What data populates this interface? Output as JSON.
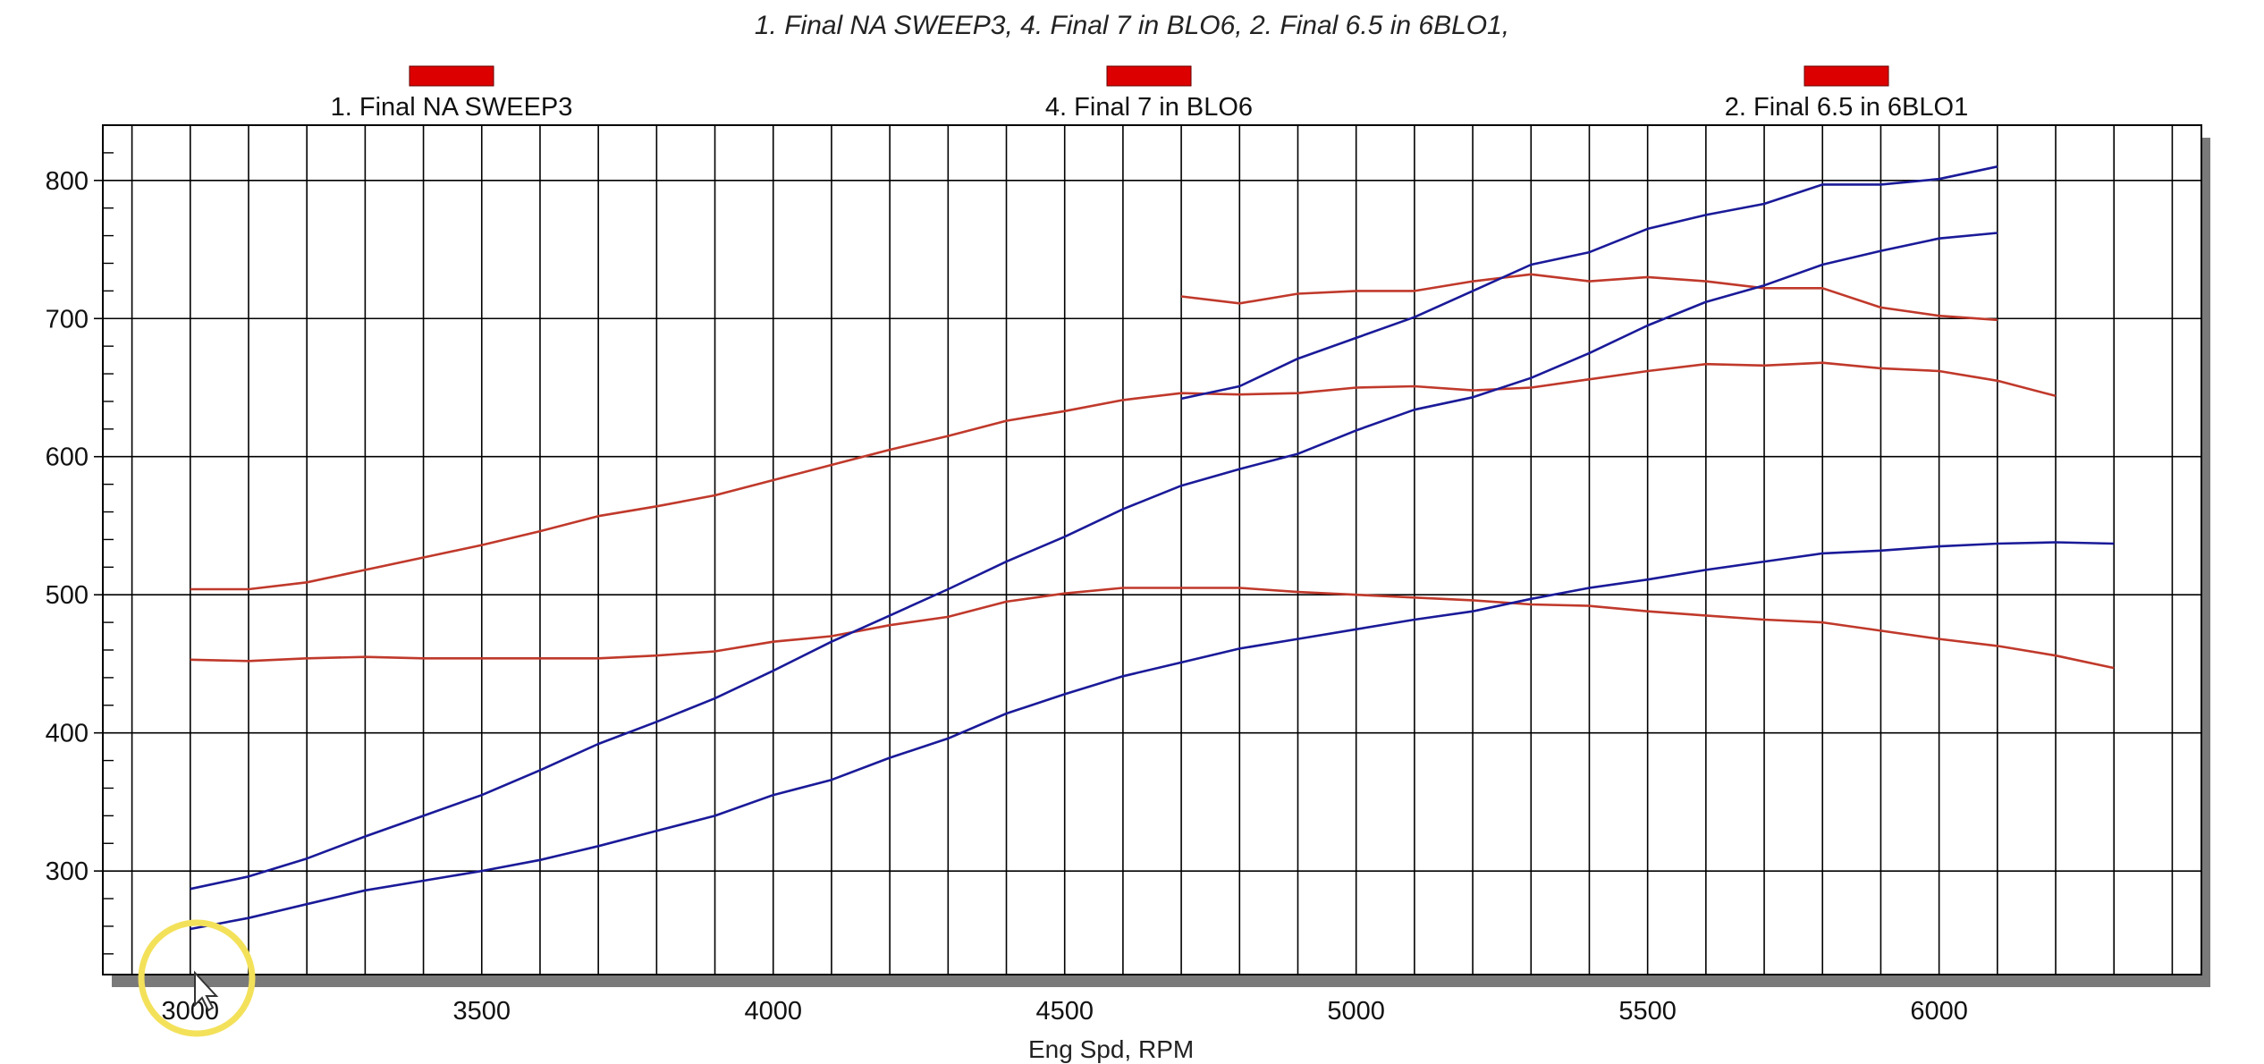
{
  "chart_data": {
    "type": "line",
    "subtitle": "1. Final NA SWEEP3, 4. Final 7 in BLO6, 2. Final 6.5 in 6BLO1,",
    "xlabel_partial": "Eng Spd, RPM",
    "xlim": [
      2850,
      6450
    ],
    "ylim": [
      225,
      840
    ],
    "x_ticks": [
      3000,
      3500,
      4000,
      4500,
      5000,
      5500,
      6000
    ],
    "y_ticks": [
      300,
      400,
      500,
      600,
      700,
      800
    ],
    "grid": true,
    "legend": [
      {
        "label": "1. Final NA SWEEP3",
        "color": "#dd0000"
      },
      {
        "label": "4. Final 7 in BLO6",
        "color": "#dd0000"
      },
      {
        "label": "2. Final 6.5 in 6BLO1",
        "color": "#dd0000"
      }
    ],
    "series": [
      {
        "color": "#c0392b",
        "x": [
          3000,
          3100,
          3200,
          3300,
          3400,
          3500,
          3600,
          3700,
          3800,
          3900,
          4000,
          4100,
          4200,
          4300,
          4400,
          4500,
          4600,
          4700,
          4800,
          4900,
          5000,
          5100,
          5200,
          5300,
          5400,
          5500,
          5600,
          5700,
          5800,
          5900,
          6000,
          6100,
          6200
        ],
        "values": [
          504,
          504,
          509,
          518,
          527,
          536,
          546,
          557,
          564,
          572,
          583,
          594,
          605,
          615,
          626,
          633,
          641,
          646,
          645,
          646,
          650,
          651,
          648,
          650,
          656,
          662,
          667,
          666,
          668,
          664,
          662,
          655,
          644
        ]
      },
      {
        "color": "#c0392b",
        "x": [
          3000,
          3100,
          3200,
          3300,
          3400,
          3500,
          3600,
          3700,
          3800,
          3900,
          4000,
          4100,
          4200,
          4300,
          4400,
          4500,
          4600,
          4700,
          4800,
          4900,
          5000,
          5100,
          5200,
          5300,
          5400,
          5500,
          5600,
          5700,
          5800,
          5900,
          6000,
          6100,
          6200,
          6300
        ],
        "values": [
          453,
          452,
          454,
          455,
          454,
          454,
          454,
          454,
          456,
          459,
          466,
          470,
          478,
          484,
          495,
          501,
          505,
          505,
          505,
          502,
          500,
          498,
          496,
          493,
          492,
          488,
          485,
          482,
          480,
          474,
          468,
          463,
          456,
          447
        ]
      },
      {
        "color": "#c0392b",
        "x": [
          4700,
          4800,
          4900,
          5000,
          5100,
          5200,
          5300,
          5400,
          5500,
          5600,
          5700,
          5800,
          5900,
          6000,
          6100
        ],
        "values": [
          716,
          711,
          718,
          720,
          720,
          727,
          732,
          727,
          730,
          727,
          722,
          722,
          708,
          702,
          699
        ]
      },
      {
        "color": "#1a1a99",
        "x": [
          3000,
          3100,
          3200,
          3300,
          3400,
          3500,
          3600,
          3700,
          3800,
          3900,
          4000,
          4100,
          4200,
          4300,
          4400,
          4500,
          4600,
          4700,
          4800,
          4900,
          5000,
          5100,
          5200,
          5300,
          5400,
          5500,
          5600,
          5700,
          5800,
          5900,
          6000,
          6100
        ],
        "values": [
          287,
          296,
          309,
          325,
          340,
          355,
          373,
          392,
          408,
          425,
          445,
          466,
          485,
          504,
          524,
          542,
          562,
          579,
          591,
          602,
          619,
          634,
          643,
          657,
          675,
          695,
          712,
          724,
          739,
          749,
          758,
          762
        ]
      },
      {
        "color": "#1a1a99",
        "x": [
          3000,
          3100,
          3200,
          3300,
          3400,
          3500,
          3600,
          3700,
          3800,
          3900,
          4000,
          4100,
          4200,
          4300,
          4400,
          4500,
          4600,
          4700,
          4800,
          4900,
          5000,
          5100,
          5200,
          5300,
          5400,
          5500,
          5600,
          5700,
          5800,
          5900,
          6000,
          6100,
          6200,
          6300
        ],
        "values": [
          258,
          266,
          276,
          286,
          293,
          300,
          308,
          318,
          329,
          340,
          355,
          366,
          382,
          396,
          414,
          428,
          441,
          451,
          461,
          468,
          475,
          482,
          488,
          497,
          505,
          511,
          518,
          524,
          530,
          532,
          535,
          537,
          538,
          537
        ]
      },
      {
        "color": "#1a1a99",
        "x": [
          4700,
          4800,
          4900,
          5000,
          5100,
          5200,
          5300,
          5400,
          5500,
          5600,
          5700,
          5800,
          5900,
          6000,
          6100
        ],
        "values": [
          642,
          651,
          671,
          686,
          701,
          720,
          739,
          748,
          765,
          775,
          783,
          797,
          797,
          801,
          810
        ]
      }
    ]
  }
}
